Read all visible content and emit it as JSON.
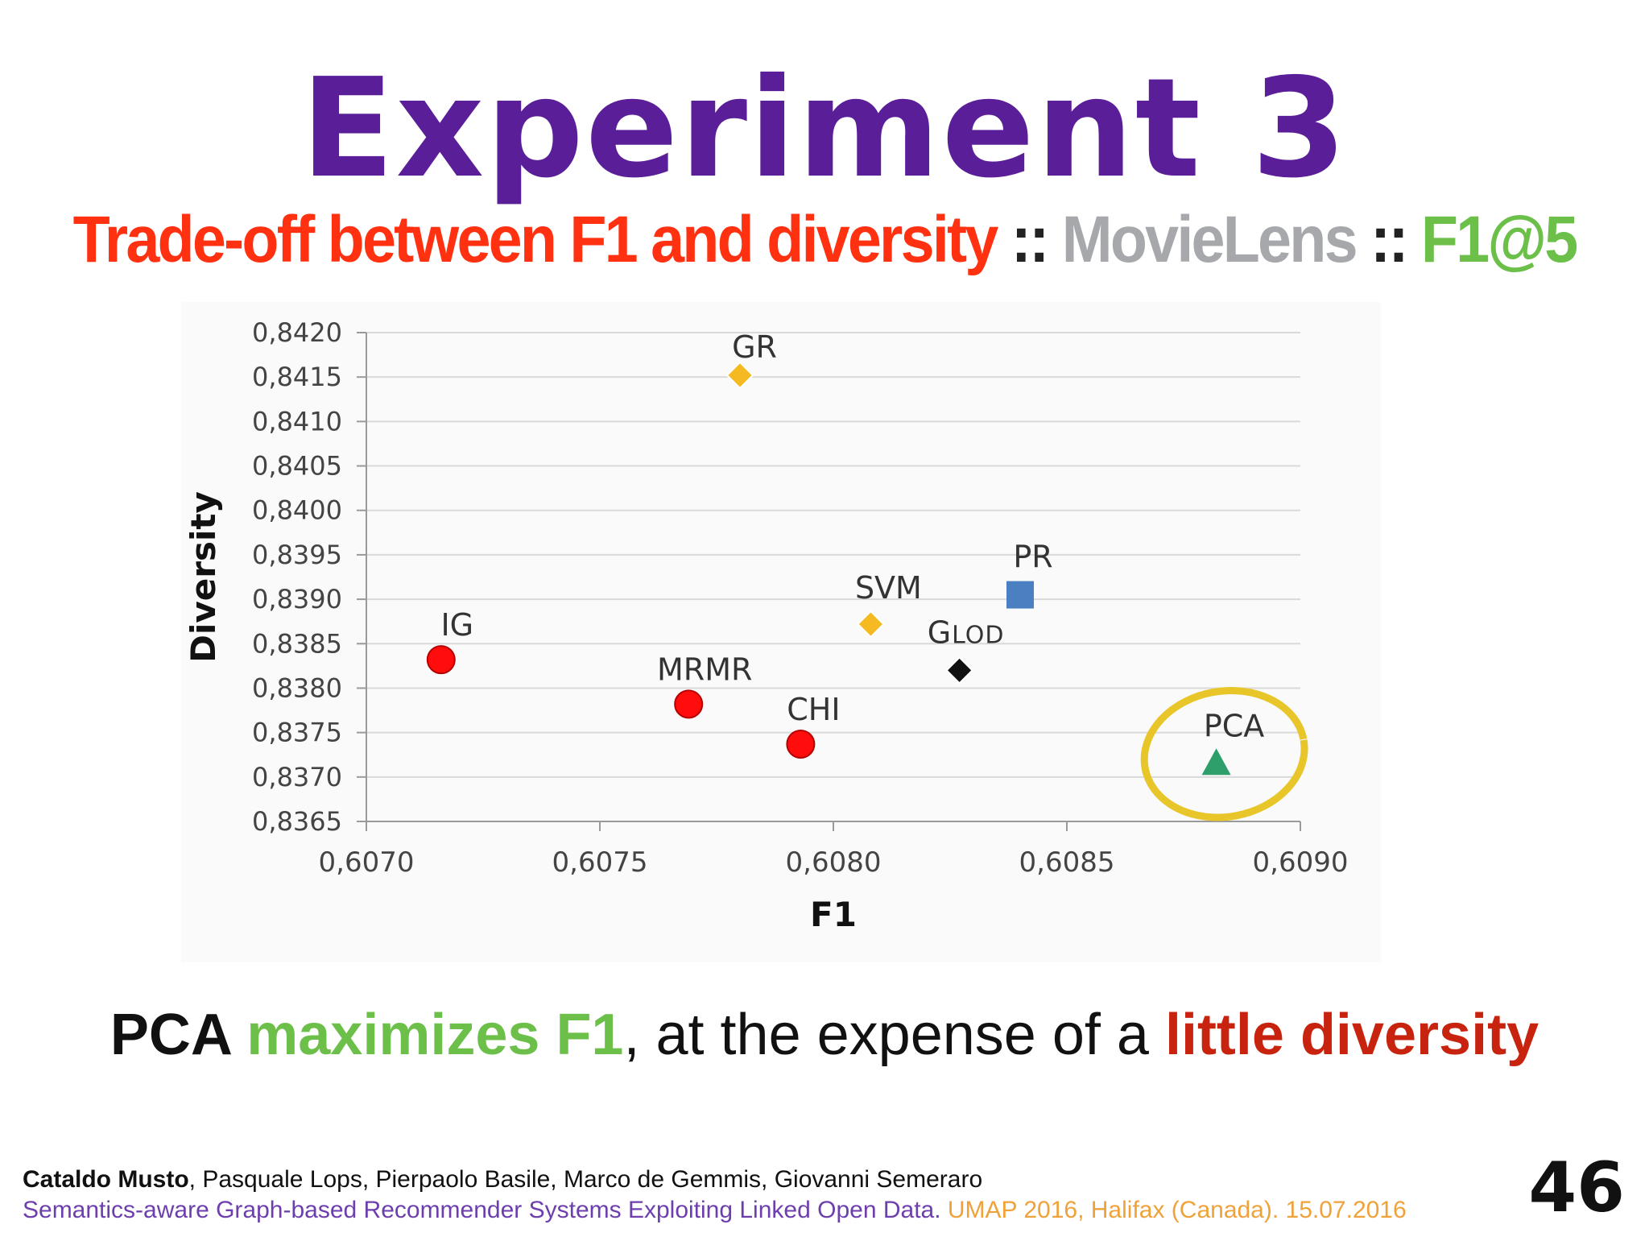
{
  "slide": {
    "title": "Experiment 3",
    "subtitle": {
      "part1": "Trade-off between F1 and diversity",
      "sep1": " :: ",
      "part2": "MovieLens",
      "sep2": " :: ",
      "part3": "F1@5"
    },
    "takeaway": {
      "part1": "PCA",
      "part2": " maximizes F1",
      "part3": ", at the expense of a ",
      "part4": "little diversity"
    },
    "footer": {
      "author_main": "Cataldo Musto",
      "authors_rest": ", Pasquale Lops, Pierpaolo Basile, Marco de Gemmis, Giovanni Semeraro",
      "paper_title": "Semantics-aware Graph-based Recommender Systems Exploiting Linked Open Data.",
      "venue": " UMAP 2016, Halifax (Canada). 15.07.2016"
    },
    "page_number": "46"
  },
  "colors": {
    "title": "#5a1e99",
    "subtitle_red": "#ff3111",
    "subtitle_gray": "#a6a8ab",
    "subtitle_green": "#6cc04a",
    "highlight_circle": "#e8c62a"
  },
  "chart_data": {
    "type": "scatter",
    "xlabel": "F1",
    "ylabel": "Diversity",
    "xlim": [
      0.607,
      0.609
    ],
    "ylim": [
      0.8365,
      0.842
    ],
    "x_ticks": [
      "0,6070",
      "0,6075",
      "0,6080",
      "0,6085",
      "0,6090"
    ],
    "y_ticks": [
      "0,8420",
      "0,8415",
      "0,8410",
      "0,8405",
      "0,8400",
      "0,8395",
      "0,8390",
      "0,8385",
      "0,8380",
      "0,8375",
      "0,8370",
      "0,8365"
    ],
    "grid": "horizontal",
    "points": [
      {
        "label": "GR",
        "x": 0.6078,
        "y": 0.84152,
        "marker": "diamond",
        "color": "#f5b921"
      },
      {
        "label": "IG",
        "x": 0.60716,
        "y": 0.83832,
        "marker": "circle",
        "color": "#ff0d0d"
      },
      {
        "label": "MRMR",
        "x": 0.60769,
        "y": 0.83782,
        "marker": "circle",
        "color": "#ff0d0d"
      },
      {
        "label": "CHI",
        "x": 0.60793,
        "y": 0.83737,
        "marker": "circle",
        "color": "#ff0d0d"
      },
      {
        "label": "SVM",
        "x": 0.60808,
        "y": 0.83872,
        "marker": "diamond",
        "color": "#f5b921"
      },
      {
        "label": "GLOD",
        "x": 0.60827,
        "y": 0.8382,
        "marker": "diamond",
        "color": "#111111"
      },
      {
        "label": "PR",
        "x": 0.6084,
        "y": 0.83905,
        "marker": "square",
        "color": "#4a7fc1"
      },
      {
        "label": "PCA",
        "x": 0.60882,
        "y": 0.83715,
        "marker": "triangle",
        "color": "#2e9e6a",
        "highlighted": true
      }
    ]
  }
}
